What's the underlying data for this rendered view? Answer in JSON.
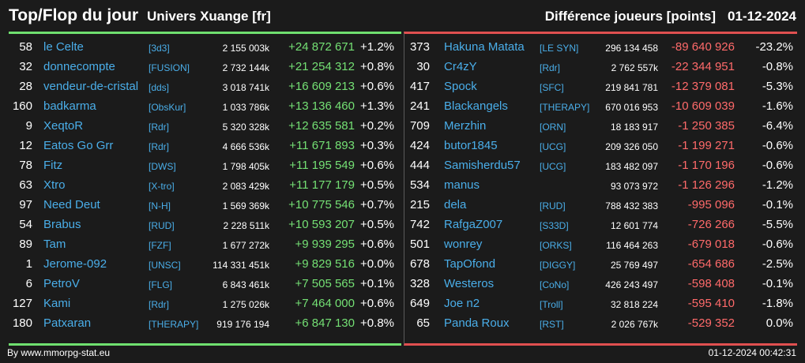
{
  "header": {
    "title": "Top/Flop du jour",
    "univers": "Univers Xuange [fr]",
    "diff_label": "Différence joueurs [points]",
    "date": "01-12-2024"
  },
  "top": [
    {
      "rank": "58",
      "name": "le Celte",
      "alliance": "[3d3]",
      "score": "2 155 003k",
      "delta": "+24 872 671",
      "pct": "+1.2%"
    },
    {
      "rank": "32",
      "name": "donnecompte",
      "alliance": "[FUSION]",
      "score": "2 732 144k",
      "delta": "+21 254 312",
      "pct": "+0.8%"
    },
    {
      "rank": "28",
      "name": "vendeur-de-cristal",
      "alliance": "[dds]",
      "score": "3 018 741k",
      "delta": "+16 609 213",
      "pct": "+0.6%"
    },
    {
      "rank": "160",
      "name": "badkarma",
      "alliance": "[ObsKur]",
      "score": "1 033 786k",
      "delta": "+13 136 460",
      "pct": "+1.3%"
    },
    {
      "rank": "9",
      "name": "XeqtoR",
      "alliance": "[Rdr]",
      "score": "5 320 328k",
      "delta": "+12 635 581",
      "pct": "+0.2%"
    },
    {
      "rank": "12",
      "name": "Eatos Go Grr",
      "alliance": "[Rdr]",
      "score": "4 666 536k",
      "delta": "+11 671 893",
      "pct": "+0.3%"
    },
    {
      "rank": "78",
      "name": "Fitz",
      "alliance": "[DWS]",
      "score": "1 798 405k",
      "delta": "+11 195 549",
      "pct": "+0.6%"
    },
    {
      "rank": "63",
      "name": "Xtro",
      "alliance": "[X-tro]",
      "score": "2 083 429k",
      "delta": "+11 177 179",
      "pct": "+0.5%"
    },
    {
      "rank": "97",
      "name": "Need Deut",
      "alliance": "[N-H]",
      "score": "1 569 369k",
      "delta": "+10 775 546",
      "pct": "+0.7%"
    },
    {
      "rank": "54",
      "name": "Brabus",
      "alliance": "[RUD]",
      "score": "2 228 511k",
      "delta": "+10 593 207",
      "pct": "+0.5%"
    },
    {
      "rank": "89",
      "name": "Tam",
      "alliance": "[FZF]",
      "score": "1 677 272k",
      "delta": "+9 939 295",
      "pct": "+0.6%"
    },
    {
      "rank": "1",
      "name": "Jerome-092",
      "alliance": "[UNSC]",
      "score": "114 331 451k",
      "delta": "+9 829 516",
      "pct": "+0.0%"
    },
    {
      "rank": "6",
      "name": "PetroV",
      "alliance": "[FLG]",
      "score": "6 843 461k",
      "delta": "+7 505 565",
      "pct": "+0.1%"
    },
    {
      "rank": "127",
      "name": "Kami",
      "alliance": "[Rdr]",
      "score": "1 275 026k",
      "delta": "+7 464 000",
      "pct": "+0.6%"
    },
    {
      "rank": "180",
      "name": "Patxaran",
      "alliance": "[THERAPY]",
      "score": "919 176 194",
      "delta": "+6 847 130",
      "pct": "+0.8%"
    }
  ],
  "flop": [
    {
      "rank": "373",
      "name": "Hakuna Matata",
      "alliance": "[LE SYN]",
      "score": "296 134 458",
      "delta": "-89 640 926",
      "pct": "-23.2%"
    },
    {
      "rank": "30",
      "name": "Cr4zY",
      "alliance": "[Rdr]",
      "score": "2 762 557k",
      "delta": "-22 344 951",
      "pct": "-0.8%"
    },
    {
      "rank": "417",
      "name": "Spock",
      "alliance": "[SFC]",
      "score": "219 841 781",
      "delta": "-12 379 081",
      "pct": "-5.3%"
    },
    {
      "rank": "241",
      "name": "Blackangels",
      "alliance": "[THERAPY]",
      "score": "670 016 953",
      "delta": "-10 609 039",
      "pct": "-1.6%"
    },
    {
      "rank": "709",
      "name": "Merzhin",
      "alliance": "[ORN]",
      "score": "18 183 917",
      "delta": "-1 250 385",
      "pct": "-6.4%"
    },
    {
      "rank": "424",
      "name": "butor1845",
      "alliance": "[UCG]",
      "score": "209 326 050",
      "delta": "-1 199 271",
      "pct": "-0.6%"
    },
    {
      "rank": "444",
      "name": "Samisherdu57",
      "alliance": "[UCG]",
      "score": "183 482 097",
      "delta": "-1 170 196",
      "pct": "-0.6%"
    },
    {
      "rank": "534",
      "name": "manus",
      "alliance": "",
      "score": "93 073 972",
      "delta": "-1 126 296",
      "pct": "-1.2%"
    },
    {
      "rank": "215",
      "name": "dela",
      "alliance": "[RUD]",
      "score": "788 432 383",
      "delta": "-995 096",
      "pct": "-0.1%"
    },
    {
      "rank": "742",
      "name": "RafgaZ007",
      "alliance": "[S33D]",
      "score": "12 601 774",
      "delta": "-726 266",
      "pct": "-5.5%"
    },
    {
      "rank": "501",
      "name": "wonrey",
      "alliance": "[ORKS]",
      "score": "116 464 263",
      "delta": "-679 018",
      "pct": "-0.6%"
    },
    {
      "rank": "678",
      "name": "TapOfond",
      "alliance": "[DIGGY]",
      "score": "25 769 497",
      "delta": "-654 686",
      "pct": "-2.5%"
    },
    {
      "rank": "328",
      "name": "Westeros",
      "alliance": "[CoNo]",
      "score": "426 243 497",
      "delta": "-598 408",
      "pct": "-0.1%"
    },
    {
      "rank": "649",
      "name": "Joe n2",
      "alliance": "[Troll]",
      "score": "32 818 224",
      "delta": "-595 410",
      "pct": "-1.8%"
    },
    {
      "rank": "65",
      "name": "Panda Roux",
      "alliance": "[RST]",
      "score": "2 026 767k",
      "delta": "-529 352",
      "pct": "0.0%"
    }
  ],
  "footer": {
    "credit": "By www.mmorpg-stat.eu",
    "timestamp": "01-12-2024 00:42:31"
  },
  "colors": {
    "positive": "#74e074",
    "negative": "#ff6a6a",
    "link": "#4aaee9",
    "background": "#1b1b1b"
  }
}
